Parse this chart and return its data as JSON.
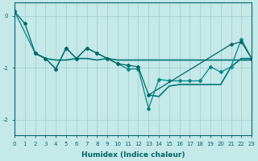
{
  "xlabel": "Humidex (Indice chaleur)",
  "bg_color": "#c5e8e8",
  "grid_color": "#a0cccc",
  "line_color1": "#006666",
  "line_color2": "#007777",
  "line_color3": "#008888",
  "xlim": [
    0,
    23
  ],
  "ylim": [
    -2.3,
    0.25
  ],
  "yticks": [
    0,
    -1,
    -2
  ],
  "xticks": [
    0,
    1,
    2,
    3,
    4,
    5,
    6,
    7,
    8,
    9,
    10,
    11,
    12,
    13,
    14,
    15,
    16,
    17,
    18,
    19,
    20,
    21,
    22,
    23
  ],
  "s1_x": [
    0,
    1,
    2,
    3,
    4,
    5,
    6,
    7,
    8,
    9,
    10,
    11,
    12,
    13,
    21,
    22,
    23
  ],
  "s1_y": [
    0.08,
    -0.15,
    -0.72,
    -0.82,
    -1.02,
    -0.62,
    -0.82,
    -0.62,
    -0.72,
    -0.82,
    -0.92,
    -0.95,
    -0.98,
    -1.52,
    -0.55,
    -0.5,
    -0.82
  ],
  "s2_x": [
    0,
    2,
    3,
    4,
    5,
    6,
    7,
    8,
    9,
    10,
    11,
    12,
    13,
    14,
    15,
    16,
    17,
    18,
    19,
    20,
    21,
    22,
    23
  ],
  "s2_y": [
    0.08,
    -0.72,
    -0.82,
    -1.02,
    -0.62,
    -0.82,
    -0.62,
    -0.72,
    -0.82,
    -0.92,
    -1.02,
    -1.02,
    -1.78,
    -1.22,
    -1.25,
    -1.25,
    -1.25,
    -1.25,
    -0.98,
    -1.08,
    -0.98,
    -0.45,
    -0.82
  ],
  "s3_x": [
    2,
    3,
    4,
    5,
    6,
    7,
    8,
    9,
    10,
    11,
    12,
    13,
    14,
    15,
    16,
    17,
    18,
    19,
    20,
    21,
    22,
    23
  ],
  "s3_y": [
    -0.72,
    -0.82,
    -0.85,
    -0.85,
    -0.82,
    -0.82,
    -0.85,
    -0.82,
    -0.85,
    -0.85,
    -0.85,
    -0.85,
    -0.85,
    -0.85,
    -0.85,
    -0.85,
    -0.85,
    -0.85,
    -0.85,
    -0.85,
    -0.85,
    -0.85
  ],
  "s4_x": [
    13,
    14,
    15,
    16,
    17,
    18,
    19,
    20,
    21,
    22,
    23
  ],
  "s4_y": [
    -1.52,
    -1.55,
    -1.35,
    -1.32,
    -1.32,
    -1.32,
    -1.32,
    -1.32,
    -0.98,
    -0.82,
    -0.82
  ]
}
